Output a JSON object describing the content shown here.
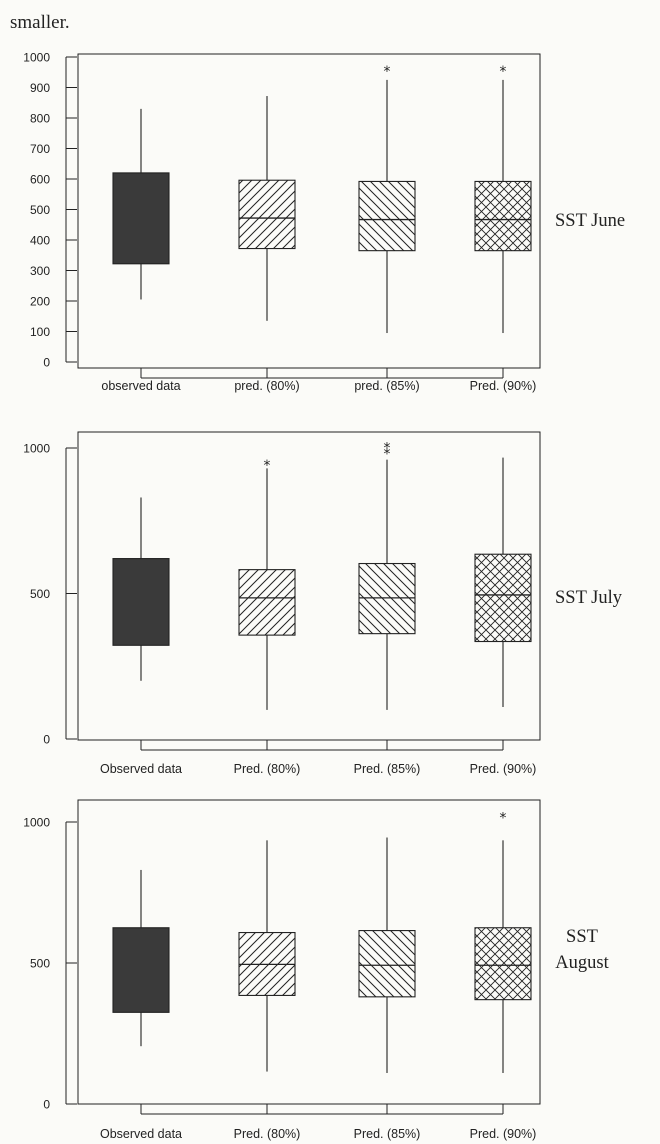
{
  "header_text": "smaller.",
  "colors": {
    "observed_fill": "#3a3a3a",
    "line": "#222222",
    "background": "#fbfbf8"
  },
  "chart_data": [
    {
      "type": "boxplot",
      "side_label": [
        "SST June"
      ],
      "ylim": [
        0,
        1000
      ],
      "y_ticks": [
        0,
        100,
        200,
        300,
        400,
        500,
        600,
        700,
        800,
        900,
        1000
      ],
      "grid": false,
      "categories": [
        "observed data",
        "pred. (80%)",
        "pred. (85%)",
        "Pred. (90%)"
      ],
      "boxes": [
        {
          "whisker_low": 205,
          "q1": 322,
          "median": null,
          "q3": 620,
          "whisker_high": 830,
          "outliers": [],
          "pattern": "solid"
        },
        {
          "whisker_low": 135,
          "q1": 372,
          "median": 472,
          "q3": 596,
          "whisker_high": 872,
          "outliers": [],
          "pattern": "diagonal-up"
        },
        {
          "whisker_low": 95,
          "q1": 365,
          "median": 467,
          "q3": 592,
          "whisker_high": 925,
          "outliers": [
            958
          ],
          "pattern": "diagonal-down"
        },
        {
          "whisker_low": 95,
          "q1": 365,
          "median": 467,
          "q3": 592,
          "whisker_high": 925,
          "outliers": [
            958
          ],
          "pattern": "crosshatch"
        }
      ]
    },
    {
      "type": "boxplot",
      "side_label": [
        "SST July"
      ],
      "ylim": [
        0,
        1000
      ],
      "y_ticks": [
        0,
        500,
        1000
      ],
      "grid": false,
      "categories": [
        "Observed data",
        "Pred. (80%)",
        "Pred. (85%)",
        "Pred. (90%)"
      ],
      "boxes": [
        {
          "whisker_low": 200,
          "q1": 322,
          "median": null,
          "q3": 620,
          "whisker_high": 830,
          "outliers": [],
          "pattern": "solid"
        },
        {
          "whisker_low": 100,
          "q1": 357,
          "median": 485,
          "q3": 582,
          "whisker_high": 930,
          "outliers": [
            945
          ],
          "pattern": "diagonal-up"
        },
        {
          "whisker_low": 100,
          "q1": 362,
          "median": 485,
          "q3": 603,
          "whisker_high": 960,
          "outliers": [
            985,
            1005
          ],
          "pattern": "diagonal-down"
        },
        {
          "whisker_low": 110,
          "q1": 335,
          "median": 495,
          "q3": 635,
          "whisker_high": 967,
          "outliers": [],
          "pattern": "crosshatch"
        }
      ]
    },
    {
      "type": "boxplot",
      "side_label": [
        "SST",
        "August"
      ],
      "ylim": [
        0,
        1000
      ],
      "y_ticks": [
        0,
        500,
        1000
      ],
      "grid": false,
      "categories": [
        "Observed data",
        "Pred. (80%)",
        "Pred. (85%)",
        "Pred. (90%)"
      ],
      "boxes": [
        {
          "whisker_low": 205,
          "q1": 325,
          "median": null,
          "q3": 625,
          "whisker_high": 830,
          "outliers": [],
          "pattern": "solid"
        },
        {
          "whisker_low": 115,
          "q1": 385,
          "median": 495,
          "q3": 608,
          "whisker_high": 935,
          "outliers": [],
          "pattern": "diagonal-up"
        },
        {
          "whisker_low": 110,
          "q1": 380,
          "median": 492,
          "q3": 615,
          "whisker_high": 945,
          "outliers": [],
          "pattern": "diagonal-down"
        },
        {
          "whisker_low": 110,
          "q1": 370,
          "median": 492,
          "q3": 625,
          "whisker_high": 935,
          "outliers": [
            1020
          ],
          "pattern": "crosshatch"
        }
      ]
    }
  ]
}
